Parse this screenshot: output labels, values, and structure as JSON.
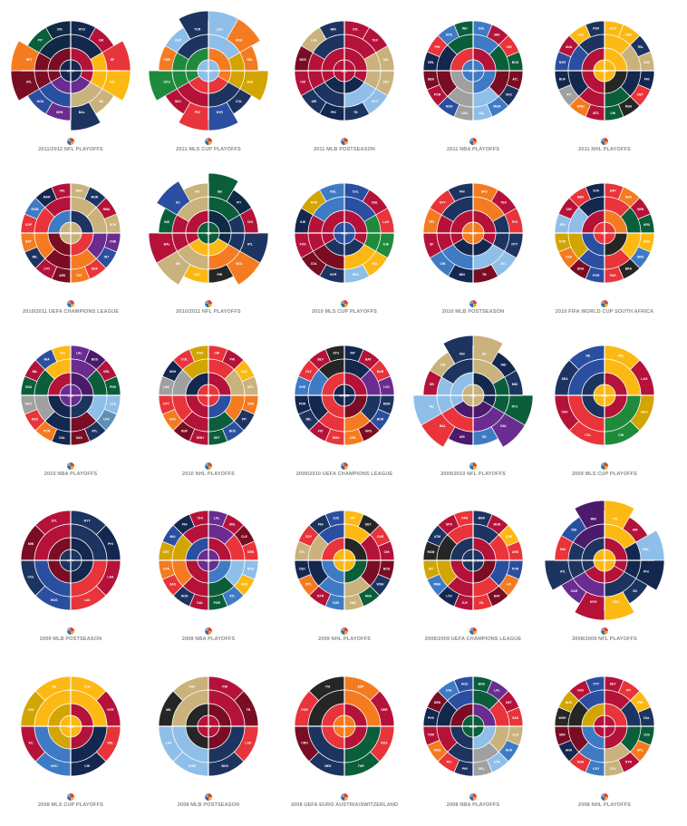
{
  "palette": [
    "#1d3461",
    "#b5123a",
    "#e8343a",
    "#f47b20",
    "#fdb913",
    "#c9b27c",
    "#13274f",
    "#2b4fa0",
    "#3f7bc4",
    "#8fbfe8",
    "#0b5e3a",
    "#1f8a3c",
    "#d2a500",
    "#6a2c91",
    "#4b1a6b",
    "#7a0d23",
    "#0f2a44",
    "#5f8fb5",
    "#a0a0a0",
    "#262626"
  ],
  "charts": [
    {
      "caption": "2011/2012 NFL PLAYOFFS",
      "center": "NYG",
      "colors": [
        6,
        1,
        2,
        4,
        5,
        0,
        13,
        7,
        15,
        3,
        10,
        16
      ],
      "ext": [
        0,
        0,
        1,
        1,
        0,
        1,
        0,
        0,
        1,
        1,
        0,
        0
      ],
      "labels": [
        "NYG",
        "GB",
        "SF",
        "NO",
        "NE",
        "BAL",
        "DEN",
        "HOU",
        "ATL",
        "DET",
        "PIT",
        "CIN"
      ]
    },
    {
      "caption": "2011 MLS CUP PLAYOFFS",
      "center": "LAG",
      "colors": [
        9,
        3,
        3,
        12,
        0,
        7,
        2,
        1,
        11,
        3,
        9,
        0
      ],
      "ext": [
        1,
        1,
        0,
        1,
        0,
        1,
        1,
        0,
        1,
        0,
        0,
        1
      ],
      "labels": [
        "LAG",
        "HOU",
        "RSL",
        "SEA",
        "COL",
        "NYR",
        "PHI",
        "SKC",
        "DCU",
        "POR",
        "CHV",
        "TOR"
      ]
    },
    {
      "caption": "2011 MLB POSTSEASON",
      "center": "STL",
      "colors": [
        1,
        1,
        5,
        5,
        9,
        0,
        6,
        0,
        1,
        15,
        5,
        0
      ],
      "ext": [
        0,
        0,
        0,
        0,
        0,
        0,
        0,
        0,
        0,
        0,
        0,
        0
      ],
      "labels": [
        "STL",
        "TEX",
        "MIL",
        "DET",
        "NYY",
        "TB",
        "PHI",
        "ARI",
        "CHI",
        "BOS",
        "LAA",
        "MIN"
      ]
    },
    {
      "caption": "2011 NBA PLAYOFFS",
      "center": "DAL",
      "colors": [
        8,
        1,
        2,
        10,
        15,
        0,
        8,
        9,
        18,
        7,
        1,
        15,
        6,
        2,
        8,
        10
      ],
      "ext": [
        0,
        0,
        0,
        0,
        0,
        0,
        0,
        0,
        0,
        0,
        0,
        0,
        0,
        0,
        0,
        0
      ],
      "labels": [
        "DAL",
        "MIA",
        "CHI",
        "BOS",
        "ATL",
        "OKC",
        "MEM",
        "LAL",
        "SAS",
        "NOH",
        "POR",
        "DEN",
        "ORL",
        "PHI",
        "NYK",
        "IND"
      ]
    },
    {
      "caption": "2011 NHL PLAYOFFS",
      "center": "BOS",
      "colors": [
        4,
        4,
        0,
        5,
        6,
        2,
        19,
        10,
        1,
        3,
        18,
        6,
        7,
        1,
        4,
        0
      ],
      "ext": [
        0,
        0,
        0,
        0,
        0,
        0,
        0,
        0,
        0,
        0,
        0,
        0,
        0,
        0,
        0,
        0
      ],
      "labels": [
        "BOS",
        "VAN",
        "TBL",
        "SJS",
        "PHI",
        "DET",
        "NSH",
        "CHI",
        "MTL",
        "WSH",
        "PIT",
        "BUF",
        "NYR",
        "ANA",
        "LAK",
        "PHX"
      ]
    },
    {
      "caption": "2010/2011 UEFA CHAMPIONS LEAGUE",
      "center": "BARCELONA",
      "colors": [
        5,
        0,
        1,
        5,
        13,
        7,
        2,
        3,
        15,
        1,
        0,
        3,
        2,
        8,
        6,
        1
      ],
      "ext": [
        0,
        0,
        0,
        0,
        0,
        0,
        0,
        0,
        0,
        0,
        0,
        0,
        0,
        0,
        0,
        0
      ],
      "labels": [
        "BAR",
        "MUN",
        "RMA",
        "SCH",
        "CHE",
        "INT",
        "SHA",
        "TOT",
        "ARS",
        "LYO",
        "MIL",
        "BAY",
        "COP",
        "ROM",
        "MAR",
        "VAL"
      ]
    },
    {
      "caption": "2010/2011 NFL PLAYOFFS",
      "center": "GB",
      "colors": [
        10,
        16,
        1,
        0,
        3,
        19,
        4,
        5,
        1,
        10,
        7,
        5
      ],
      "ext": [
        1,
        0,
        0,
        1,
        1,
        0,
        0,
        1,
        1,
        0,
        1,
        0
      ],
      "labels": [
        "GB",
        "PIT",
        "CHI",
        "ATL",
        "SEA",
        "PHI",
        "NYJ",
        "NE",
        "BAL",
        "IND",
        "KC",
        "NO"
      ]
    },
    {
      "caption": "2010 MLS CUP PLAYOFFS",
      "center": "COL",
      "colors": [
        7,
        1,
        2,
        11,
        4,
        9,
        0,
        15,
        1,
        6,
        12,
        8
      ],
      "ext": [
        0,
        0,
        0,
        0,
        0,
        0,
        0,
        0,
        0,
        0,
        0,
        0
      ],
      "labels": [
        "COL",
        "DAL",
        "LAG",
        "SJE",
        "RSL",
        "SEA",
        "NYR",
        "COL",
        "FCD",
        "SJE",
        "NYR",
        "RSL"
      ]
    },
    {
      "caption": "2010 MLB POSTSEASON",
      "center": "SFG",
      "colors": [
        3,
        1,
        2,
        0,
        9,
        15,
        6,
        8,
        1,
        3,
        2,
        0
      ],
      "ext": [
        0,
        0,
        0,
        0,
        0,
        0,
        0,
        0,
        0,
        0,
        0,
        0
      ],
      "labels": [
        "SFG",
        "TEX",
        "PHI",
        "NYY",
        "ATL",
        "TB",
        "MIN",
        "CIN",
        "SF",
        "TEX",
        "NYY",
        "PHI"
      ]
    },
    {
      "caption": "2010 FIFA WORLD CUP SOUTH AFRICA",
      "center": "ESP",
      "colors": [
        2,
        3,
        1,
        10,
        4,
        8,
        19,
        2,
        7,
        15,
        3,
        12,
        9,
        1,
        2,
        6
      ],
      "ext": [
        0,
        0,
        0,
        0,
        0,
        0,
        0,
        0,
        0,
        0,
        0,
        0,
        0,
        0,
        0,
        0
      ],
      "labels": [
        "ESP",
        "NED",
        "GER",
        "URU",
        "GHA",
        "ARG",
        "BRA",
        "PAR",
        "POR",
        "ENG",
        "USA",
        "KOR",
        "JPN",
        "CHI",
        "MEX",
        "SVK"
      ]
    },
    {
      "caption": "2010 NBA PLAYOFFS",
      "center": "LAL",
      "colors": [
        13,
        14,
        1,
        10,
        9,
        17,
        0,
        15,
        6,
        3,
        2,
        18,
        10,
        1,
        7,
        4
      ],
      "ext": [
        0,
        0,
        0,
        0,
        0,
        0,
        0,
        0,
        0,
        0,
        0,
        0,
        0,
        0,
        0,
        0
      ],
      "labels": [
        "LAL",
        "BOS",
        "ORL",
        "PHX",
        "CLE",
        "UTA",
        "ATL",
        "SAS",
        "DAL",
        "POR",
        "DEN",
        "OKC",
        "CHA",
        "MIL",
        "MIA",
        "CHI"
      ]
    },
    {
      "caption": "2010 NHL PLAYOFFS",
      "center": "CHI",
      "colors": [
        2,
        1,
        4,
        5,
        3,
        0,
        7,
        10,
        1,
        15,
        3,
        2,
        18,
        6,
        2,
        12
      ],
      "ext": [
        0,
        0,
        0,
        0,
        0,
        0,
        0,
        0,
        0,
        0,
        0,
        0,
        0,
        0,
        0,
        0
      ],
      "labels": [
        "CHI",
        "PHI",
        "SJS",
        "MTL",
        "VAN",
        "PIT",
        "BOS",
        "DET",
        "WSH",
        "BUF",
        "NJD",
        "OTT",
        "LAK",
        "NSH",
        "COL",
        "PHX"
      ]
    },
    {
      "caption": "2009/2010 UEFA CHAMPIONS LEAGUE",
      "center": "INTER",
      "colors": [
        6,
        1,
        2,
        13,
        0,
        7,
        15,
        3,
        2,
        1,
        0,
        6,
        8,
        2,
        1,
        19
      ],
      "ext": [
        0,
        0,
        0,
        0,
        0,
        0,
        0,
        0,
        0,
        0,
        0,
        0,
        0,
        0,
        0,
        0
      ],
      "labels": [
        "INT",
        "BAY",
        "BAR",
        "LYO",
        "MUN",
        "BOR",
        "ARS",
        "CSK",
        "RMA",
        "FIO",
        "MIL",
        "POR",
        "CHE",
        "OLY",
        "SEV",
        "STU"
      ]
    },
    {
      "caption": "2009/2010 NFL PLAYOFFS",
      "center": "NO",
      "colors": [
        5,
        6,
        0,
        10,
        13,
        8,
        14,
        2,
        9,
        1,
        5,
        0
      ],
      "ext": [
        1,
        0,
        0,
        1,
        1,
        0,
        0,
        1,
        1,
        0,
        0,
        1
      ],
      "labels": [
        "NO",
        "IND",
        "MIN",
        "NYJ",
        "DAL",
        "SD",
        "ARI",
        "BAL",
        "NE",
        "GB",
        "CIN",
        "PHI"
      ]
    },
    {
      "caption": "2009 MLS CUP PLAYOFFS",
      "center": "RSL",
      "colors": [
        4,
        1,
        12,
        11,
        2,
        1,
        0,
        7
      ],
      "ext": [
        0,
        0,
        0,
        0,
        0,
        0,
        0,
        0
      ],
      "labels": [
        "RSL",
        "LAG",
        "HOU",
        "CHI",
        "COL",
        "CHV",
        "SEA",
        "NE"
      ]
    },
    {
      "caption": "2009 MLB POSTSEASON",
      "center": "NYY",
      "colors": [
        0,
        6,
        1,
        2,
        7,
        0,
        15,
        1
      ],
      "ext": [
        0,
        0,
        0,
        0,
        0,
        0,
        0,
        0
      ],
      "labels": [
        "NYY",
        "PHI",
        "LAA",
        "LAD",
        "BOS",
        "COL",
        "MIN",
        "STL"
      ]
    },
    {
      "caption": "2008 NBA PLAYOFFS",
      "center": "LAL",
      "colors": [
        13,
        1,
        15,
        2,
        9,
        4,
        8,
        10,
        1,
        0,
        2,
        3,
        12,
        7,
        6,
        1
      ],
      "ext": [
        0,
        0,
        0,
        0,
        0,
        0,
        0,
        0,
        0,
        0,
        0,
        0,
        0,
        0,
        0,
        0
      ],
      "labels": [
        "LAL",
        "ORL",
        "CLE",
        "DEN",
        "BOS",
        "HOU",
        "ATL",
        "POR",
        "DAL",
        "NOH",
        "SAS",
        "UTA",
        "DET",
        "MIA",
        "PHI",
        "CHI"
      ]
    },
    {
      "caption": "2009 NHL PLAYOFFS",
      "center": "PIT",
      "colors": [
        4,
        19,
        2,
        1,
        15,
        0,
        10,
        5,
        8,
        1,
        3,
        6,
        5,
        2,
        0,
        7
      ],
      "ext": [
        0,
        0,
        0,
        0,
        0,
        0,
        0,
        0,
        0,
        0,
        0,
        0,
        0,
        0,
        0,
        0
      ],
      "labels": [
        "PIT",
        "DET",
        "CAR",
        "CHI",
        "BOS",
        "WSH",
        "ANA",
        "VAN",
        "NJD",
        "NYR",
        "MTL",
        "CBJ",
        "STL",
        "CGY",
        "PHI",
        "SJS"
      ]
    },
    {
      "caption": "2008/2009 UEFA CHAMPIONS LEAGUE",
      "center": "BARCELONA",
      "colors": [
        0,
        1,
        4,
        2,
        7,
        3,
        15,
        2,
        1,
        6,
        8,
        12,
        19,
        0,
        1,
        2
      ],
      "ext": [
        0,
        0,
        0,
        0,
        0,
        0,
        0,
        0,
        0,
        0,
        0,
        0,
        0,
        0,
        0,
        0
      ],
      "labels": [
        "BAR",
        "MUN",
        "CHE",
        "ARS",
        "POR",
        "LIV",
        "BAY",
        "VIL",
        "JUV",
        "LYO",
        "RMA",
        "INT",
        "ROM",
        "ATM",
        "SPO",
        "PAN"
      ]
    },
    {
      "caption": "2008/2009 NFL PLAYOFFS",
      "center": "PIT",
      "colors": [
        4,
        1,
        9,
        6,
        0,
        4,
        1,
        13,
        0,
        2,
        7,
        14
      ],
      "ext": [
        1,
        0,
        1,
        1,
        0,
        1,
        1,
        0,
        1,
        0,
        0,
        1
      ],
      "labels": [
        "PIT",
        "ARI",
        "BAL",
        "PHI",
        "SD",
        "TEN",
        "NYG",
        "CAR",
        "ATL",
        "MIA",
        "IND",
        "MIN"
      ]
    },
    {
      "caption": "2008 MLS CUP PLAYOFFS",
      "center": "CLB",
      "colors": [
        4,
        1,
        2,
        6,
        8,
        1,
        12,
        4
      ],
      "ext": [
        0,
        0,
        0,
        0,
        0,
        0,
        0,
        0
      ],
      "labels": [
        "CLB",
        "NYR",
        "RSL",
        "CHI",
        "HOU",
        "KC",
        "CHV",
        "NE"
      ]
    },
    {
      "caption": "2008 MLB POSTSEASON",
      "center": "PHI",
      "colors": [
        1,
        15,
        2,
        0,
        9,
        9,
        19,
        5
      ],
      "ext": [
        0,
        0,
        0,
        0,
        0,
        0,
        0,
        0
      ],
      "labels": [
        "PHI",
        "TB",
        "LAD",
        "BOS",
        "CHW",
        "LAA",
        "MIL",
        "CHC"
      ]
    },
    {
      "caption": "2008 UEFA EURO AUSTRIA/SWITZERLAND",
      "center": "ESP",
      "colors": [
        3,
        1,
        2,
        10,
        0,
        15,
        2,
        19
      ],
      "ext": [
        0,
        0,
        0,
        0,
        0,
        0,
        0,
        0
      ],
      "labels": [
        "ESP",
        "GER",
        "RUS",
        "TUR",
        "NED",
        "CRO",
        "POR",
        "ITA"
      ]
    },
    {
      "caption": "2008 NBA PLAYOFFS",
      "center": "BOS",
      "colors": [
        10,
        13,
        1,
        2,
        5,
        8,
        9,
        18,
        0,
        2,
        3,
        1,
        6,
        15,
        8,
        7
      ],
      "ext": [
        0,
        0,
        0,
        0,
        0,
        0,
        0,
        0,
        0,
        0,
        0,
        0,
        0,
        0,
        0,
        0
      ],
      "labels": [
        "BOS",
        "LAL",
        "DET",
        "SAS",
        "CLE",
        "NOH",
        "UTA",
        "ORL",
        "PHI",
        "ATL",
        "WAS",
        "TOR",
        "PHX",
        "DEN",
        "DAL",
        "HOU"
      ]
    },
    {
      "caption": "2008 NHL PLAYOFFS",
      "center": "DET",
      "colors": [
        1,
        2,
        4,
        0,
        10,
        3,
        1,
        5,
        8,
        2,
        6,
        15,
        19,
        12,
        1,
        7
      ],
      "ext": [
        0,
        0,
        0,
        0,
        0,
        0,
        0,
        0,
        0,
        0,
        0,
        0,
        0,
        0,
        0,
        0
      ],
      "labels": [
        "DET",
        "PIT",
        "PHI",
        "DAL",
        "SJS",
        "MTL",
        "NYR",
        "COL",
        "CGY",
        "NSH",
        "ANA",
        "MIN",
        "WSH",
        "BOS",
        "NJD",
        "OTT"
      ]
    }
  ]
}
